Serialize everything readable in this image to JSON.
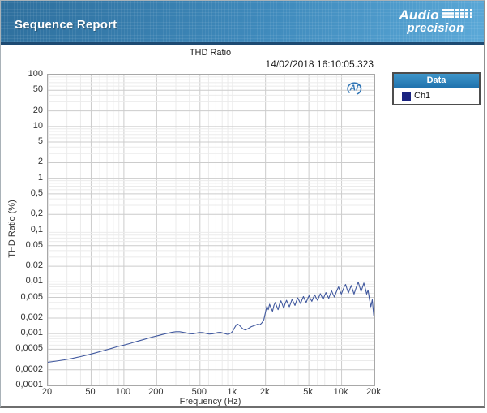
{
  "header": {
    "title": "Sequence Report",
    "logo_line1": "Audio",
    "logo_line2": "precision"
  },
  "legend": {
    "header": "Data",
    "items": [
      {
        "label": "Ch1",
        "color": "#1a2380"
      }
    ]
  },
  "watermark": {
    "label": "AP",
    "color": "#2e74b5"
  },
  "chart_data": {
    "type": "line",
    "title": "THD Ratio",
    "timestamp": "14/02/2018 16:10:05.323",
    "xlabel": "Frequency (Hz)",
    "ylabel": "THD Ratio (%)",
    "x_scale": "log",
    "y_scale": "log",
    "xlim": [
      20,
      20000
    ],
    "ylim": [
      0.0001,
      100
    ],
    "grid": {
      "major_color": "#cccccc",
      "minor_color": "#ebebeb",
      "border_color": "#a8a8a8"
    },
    "x_ticks": [
      [
        20,
        "20"
      ],
      [
        50,
        "50"
      ],
      [
        100,
        "100"
      ],
      [
        200,
        "200"
      ],
      [
        500,
        "500"
      ],
      [
        1000,
        "1k"
      ],
      [
        2000,
        "2k"
      ],
      [
        5000,
        "5k"
      ],
      [
        10000,
        "10k"
      ],
      [
        20000,
        "20k"
      ]
    ],
    "y_ticks": [
      [
        100,
        "100"
      ],
      [
        50,
        "50"
      ],
      [
        20,
        "20"
      ],
      [
        10,
        "10"
      ],
      [
        5,
        "5"
      ],
      [
        2,
        "2"
      ],
      [
        1,
        "1"
      ],
      [
        0.5,
        "0,5"
      ],
      [
        0.2,
        "0,2"
      ],
      [
        0.1,
        "0,1"
      ],
      [
        0.05,
        "0,05"
      ],
      [
        0.02,
        "0,02"
      ],
      [
        0.01,
        "0,01"
      ],
      [
        0.005,
        "0,005"
      ],
      [
        0.002,
        "0,002"
      ],
      [
        0.001,
        "0,001"
      ],
      [
        0.0005,
        "0,0005"
      ],
      [
        0.0002,
        "0,0002"
      ],
      [
        0.0001,
        "0,0001"
      ]
    ],
    "series": [
      {
        "name": "Ch1",
        "color": "#40589e",
        "points": [
          [
            20,
            0.00028
          ],
          [
            24,
            0.000295
          ],
          [
            28,
            0.00031
          ],
          [
            33,
            0.00033
          ],
          [
            40,
            0.00036
          ],
          [
            48,
            0.000395
          ],
          [
            56,
            0.00043
          ],
          [
            65,
            0.00047
          ],
          [
            75,
            0.00051
          ],
          [
            87,
            0.00056
          ],
          [
            100,
            0.0006
          ],
          [
            115,
            0.00065
          ],
          [
            132,
            0.00071
          ],
          [
            152,
            0.00077
          ],
          [
            175,
            0.00084
          ],
          [
            200,
            0.0009
          ],
          [
            225,
            0.00096
          ],
          [
            250,
            0.00101
          ],
          [
            275,
            0.00106
          ],
          [
            300,
            0.00109
          ],
          [
            325,
            0.00109
          ],
          [
            350,
            0.00106
          ],
          [
            375,
            0.00103
          ],
          [
            400,
            0.001
          ],
          [
            430,
            0.00099
          ],
          [
            460,
            0.00102
          ],
          [
            490,
            0.00105
          ],
          [
            520,
            0.00105
          ],
          [
            550,
            0.00103
          ],
          [
            580,
            0.001
          ],
          [
            610,
            0.00098
          ],
          [
            650,
            0.00099
          ],
          [
            690,
            0.00102
          ],
          [
            730,
            0.00105
          ],
          [
            770,
            0.00106
          ],
          [
            810,
            0.00103
          ],
          [
            850,
            0.001
          ],
          [
            890,
            0.00097
          ],
          [
            930,
            0.00099
          ],
          [
            970,
            0.00104
          ],
          [
            1000,
            0.00112
          ],
          [
            1040,
            0.0013
          ],
          [
            1080,
            0.00148
          ],
          [
            1110,
            0.00152
          ],
          [
            1150,
            0.00145
          ],
          [
            1200,
            0.00132
          ],
          [
            1250,
            0.00122
          ],
          [
            1300,
            0.00118
          ],
          [
            1360,
            0.00122
          ],
          [
            1420,
            0.00129
          ],
          [
            1480,
            0.00136
          ],
          [
            1550,
            0.00141
          ],
          [
            1620,
            0.00146
          ],
          [
            1700,
            0.00152
          ],
          [
            1780,
            0.00148
          ],
          [
            1860,
            0.00163
          ],
          [
            1930,
            0.00185
          ],
          [
            2000,
            0.0026
          ],
          [
            2060,
            0.0034
          ],
          [
            2120,
            0.0029
          ],
          [
            2180,
            0.0037
          ],
          [
            2250,
            0.0031
          ],
          [
            2320,
            0.0027
          ],
          [
            2390,
            0.0035
          ],
          [
            2460,
            0.004
          ],
          [
            2530,
            0.0034
          ],
          [
            2610,
            0.0029
          ],
          [
            2690,
            0.0037
          ],
          [
            2770,
            0.0043
          ],
          [
            2850,
            0.0037
          ],
          [
            2940,
            0.0031
          ],
          [
            3030,
            0.0038
          ],
          [
            3120,
            0.0044
          ],
          [
            3210,
            0.0038
          ],
          [
            3310,
            0.0033
          ],
          [
            3410,
            0.0039
          ],
          [
            3510,
            0.0046
          ],
          [
            3620,
            0.004
          ],
          [
            3730,
            0.0035
          ],
          [
            3840,
            0.0042
          ],
          [
            3960,
            0.0049
          ],
          [
            4080,
            0.0043
          ],
          [
            4200,
            0.0038
          ],
          [
            4330,
            0.0045
          ],
          [
            4460,
            0.0052
          ],
          [
            4590,
            0.0045
          ],
          [
            4730,
            0.004
          ],
          [
            4870,
            0.0047
          ],
          [
            5020,
            0.0054
          ],
          [
            5170,
            0.0047
          ],
          [
            5330,
            0.0042
          ],
          [
            5490,
            0.0049
          ],
          [
            5660,
            0.0056
          ],
          [
            5830,
            0.0049
          ],
          [
            6010,
            0.0044
          ],
          [
            6190,
            0.0051
          ],
          [
            6380,
            0.0059
          ],
          [
            6570,
            0.0052
          ],
          [
            6770,
            0.0046
          ],
          [
            6970,
            0.0054
          ],
          [
            7180,
            0.0062
          ],
          [
            7400,
            0.0054
          ],
          [
            7620,
            0.0048
          ],
          [
            7850,
            0.0057
          ],
          [
            8090,
            0.0067
          ],
          [
            8330,
            0.0058
          ],
          [
            8580,
            0.0051
          ],
          [
            8840,
            0.006
          ],
          [
            9110,
            0.007
          ],
          [
            9380,
            0.008
          ],
          [
            9660,
            0.0067
          ],
          [
            9950,
            0.0058
          ],
          [
            10250,
            0.0068
          ],
          [
            10560,
            0.008
          ],
          [
            10880,
            0.0089
          ],
          [
            11210,
            0.0073
          ],
          [
            11550,
            0.0061
          ],
          [
            11900,
            0.0072
          ],
          [
            12260,
            0.0085
          ],
          [
            12630,
            0.007
          ],
          [
            13010,
            0.0058
          ],
          [
            13400,
            0.007
          ],
          [
            13800,
            0.0084
          ],
          [
            14220,
            0.0099
          ],
          [
            14650,
            0.008
          ],
          [
            15090,
            0.0065
          ],
          [
            15540,
            0.0078
          ],
          [
            16010,
            0.0095
          ],
          [
            16490,
            0.0076
          ],
          [
            16990,
            0.0058
          ],
          [
            17500,
            0.0069
          ],
          [
            18030,
            0.0046
          ],
          [
            18570,
            0.0033
          ],
          [
            19130,
            0.0045
          ],
          [
            19500,
            0.0029
          ],
          [
            19750,
            0.0022
          ],
          [
            20000,
            0.0037
          ]
        ]
      }
    ]
  }
}
